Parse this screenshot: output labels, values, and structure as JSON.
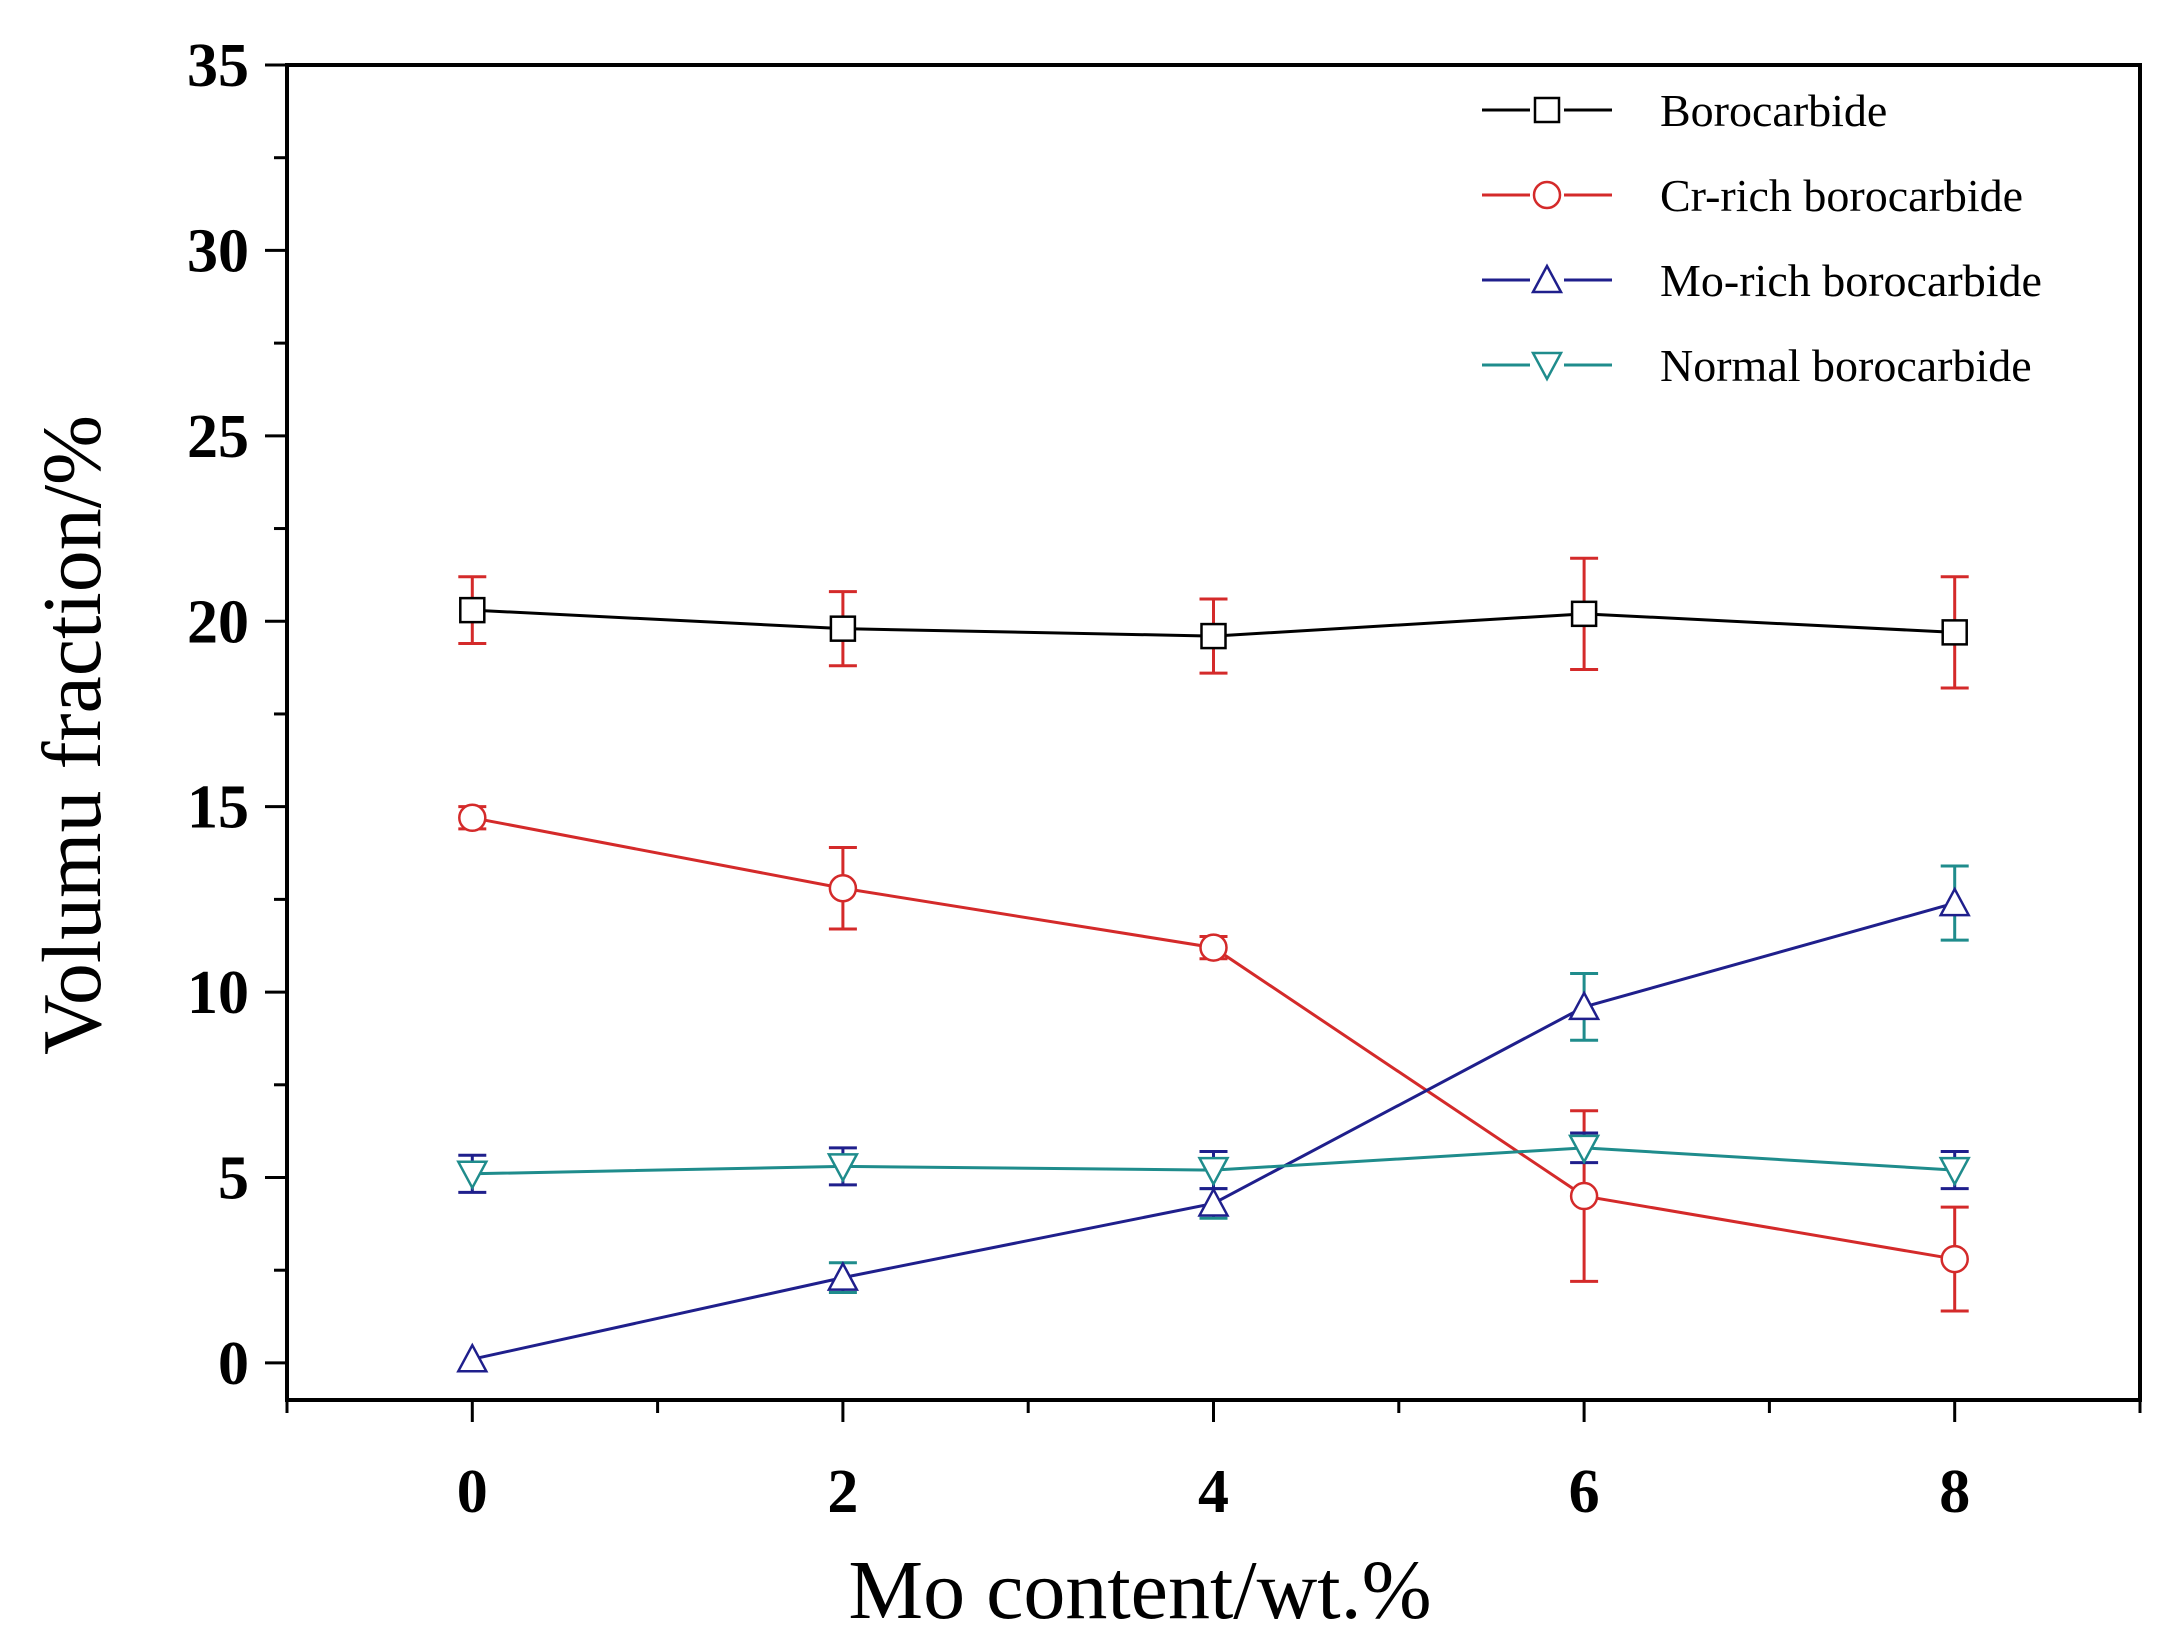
{
  "chart_data": {
    "type": "line",
    "title": "",
    "xlabel": "Mo content/wt.%",
    "ylabel": "Volumu fraction/%",
    "xlim": [
      -1,
      9
    ],
    "ylim": [
      -1,
      35
    ],
    "x_ticks": [
      0,
      2,
      4,
      6,
      8
    ],
    "y_ticks": [
      0,
      5,
      10,
      15,
      20,
      25,
      30,
      35
    ],
    "x_tick_labels": [
      "0",
      "2",
      "4",
      "6",
      "8"
    ],
    "y_tick_labels": [
      "0",
      "5",
      "10",
      "15",
      "20",
      "25",
      "30",
      "35"
    ],
    "grid": false,
    "legend_position": "top-right",
    "series": [
      {
        "name": "Borocarbide",
        "color": "#000000",
        "marker": "square",
        "x": [
          0,
          2,
          4,
          6,
          8
        ],
        "y": [
          20.3,
          19.8,
          19.6,
          20.2,
          19.7
        ],
        "err": [
          0.9,
          1.0,
          1.0,
          1.5,
          1.5
        ],
        "err_color": "#d42a2a"
      },
      {
        "name": "Cr-rich borocarbide",
        "color": "#d42a2a",
        "marker": "circle",
        "x": [
          0,
          2,
          4,
          6,
          8
        ],
        "y": [
          14.7,
          12.8,
          11.2,
          4.5,
          2.8
        ],
        "err": [
          0.3,
          1.1,
          0.3,
          2.3,
          1.4
        ],
        "err_color": "#d42a2a"
      },
      {
        "name": "Mo-rich borocarbide",
        "color": "#1f1f8c",
        "marker": "triangle-up",
        "x": [
          0,
          2,
          4,
          6,
          8
        ],
        "y": [
          0.1,
          2.3,
          4.3,
          9.6,
          12.4
        ],
        "err": [
          0,
          0.4,
          0.4,
          0.9,
          1.0
        ],
        "err_color": "#1f8c8c"
      },
      {
        "name": "Normal borocarbide",
        "color": "#1f8c8c",
        "marker": "triangle-down",
        "x": [
          0,
          2,
          4,
          6,
          8
        ],
        "y": [
          5.1,
          5.3,
          5.2,
          5.8,
          5.2
        ],
        "err": [
          0.5,
          0.5,
          0.5,
          0.4,
          0.5
        ],
        "err_color": "#1f1f8c"
      }
    ]
  }
}
